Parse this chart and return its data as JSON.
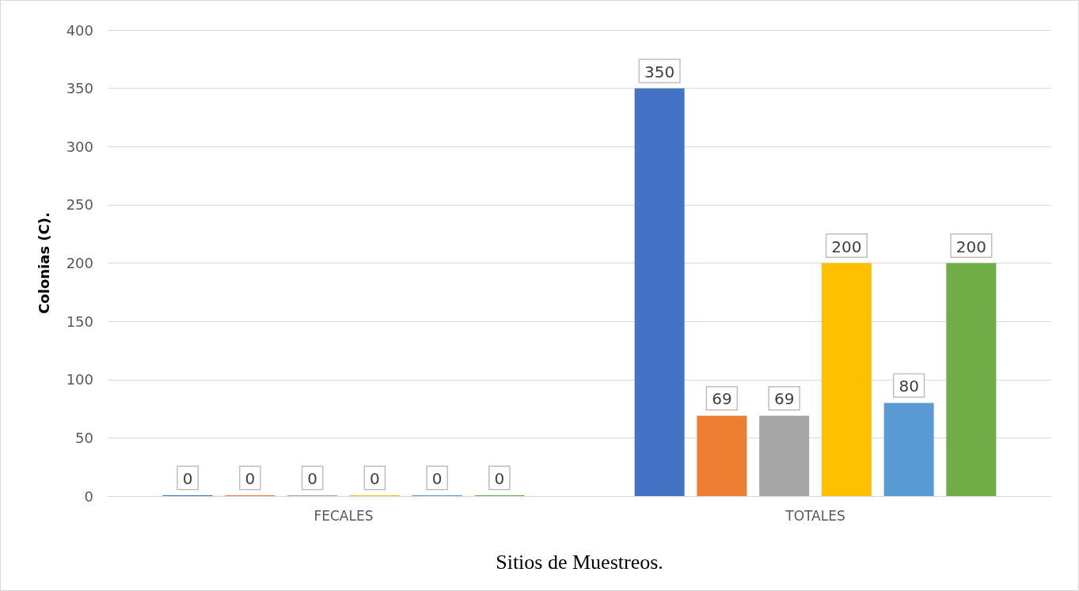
{
  "chart_data": {
    "type": "bar",
    "xlabel": "Sitios de Muestreos.",
    "ylabel": "Colonias (C).",
    "categories": [
      "FECALES",
      "TOTALES"
    ],
    "series": [
      {
        "color": "#4472c4",
        "values": [
          0,
          350
        ]
      },
      {
        "color": "#ed7d31",
        "values": [
          0,
          69
        ]
      },
      {
        "color": "#a5a5a5",
        "values": [
          0,
          69
        ]
      },
      {
        "color": "#ffc000",
        "values": [
          0,
          200
        ]
      },
      {
        "color": "#5b9bd5",
        "values": [
          0,
          80
        ]
      },
      {
        "color": "#70ad47",
        "values": [
          0,
          200
        ]
      }
    ],
    "ylim": [
      0,
      400
    ],
    "yticks": [
      0,
      50,
      100,
      150,
      200,
      250,
      300,
      350,
      400
    ],
    "grid": "y",
    "data_labels": true
  }
}
